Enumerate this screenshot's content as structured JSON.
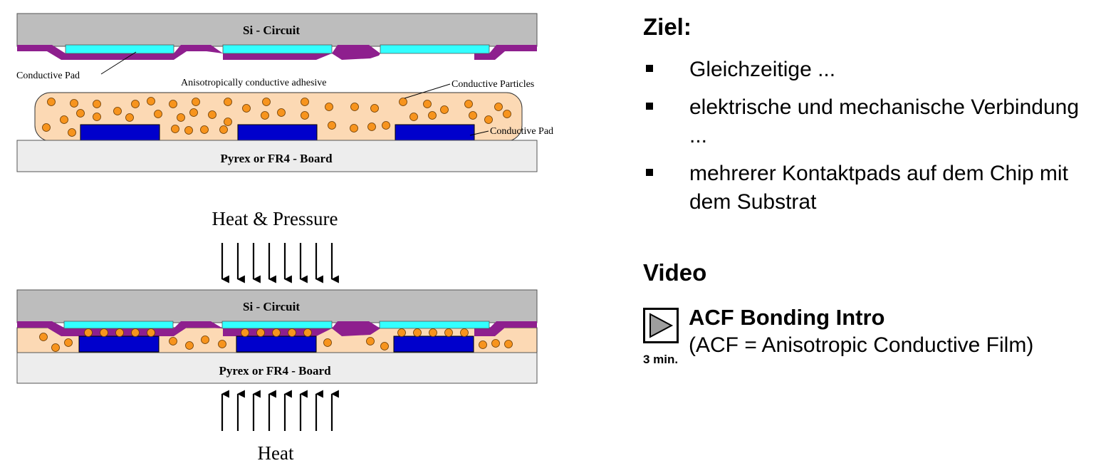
{
  "diagram": {
    "top": {
      "chip_label": "Si - Circuit",
      "board_label": "Pyrex or FR4 - Board",
      "pad_label_left": "Conductive Pad",
      "adhesive_label": "Anisotropically conductive adhesive",
      "particles_label": "Conductive Particles",
      "pad_label_right": "Conductive Pad"
    },
    "heat_pressure_label": "Heat & Pressure",
    "bottom": {
      "chip_label": "Si - Circuit",
      "board_label": "Pyrex or FR4 - Board"
    },
    "heat_label": "Heat",
    "colors": {
      "chip": "#bdbdbd",
      "board": "#ededed",
      "chip_pad": "#33ffff",
      "board_pad": "#0000cc",
      "passivation": "#8e1f8e",
      "adhesive": "#fcd9b4",
      "particle": "#f7941d"
    }
  },
  "goal": {
    "heading": "Ziel:",
    "bullets": [
      "Gleichzeitige ...",
      "elektrische und mechanische Verbindung ...",
      "mehrerer Kontaktpads auf dem Chip mit dem Substrat"
    ]
  },
  "video": {
    "heading": "Video",
    "icon": "play-icon",
    "title": "ACF Bonding Intro",
    "subtitle": "(ACF = Anisotropic Conductive Film)",
    "duration": "3 min."
  }
}
